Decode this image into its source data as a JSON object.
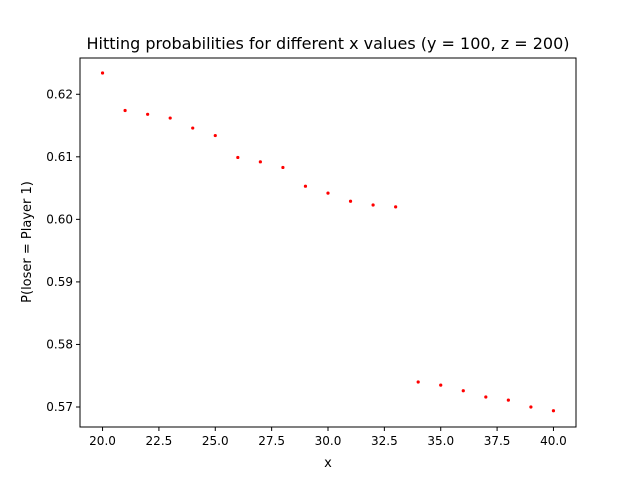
{
  "chart_data": {
    "type": "scatter",
    "title": "Hitting probabilities for different x values (y = 100, z = 200)",
    "xlabel": "x",
    "ylabel": "P(loser = Player 1)",
    "xlim": [
      19.0,
      41.0
    ],
    "ylim": [
      0.5668,
      0.6258
    ],
    "x_ticks": [
      "20.0",
      "22.5",
      "25.0",
      "27.5",
      "30.0",
      "32.5",
      "35.0",
      "37.5",
      "40.0"
    ],
    "y_ticks": [
      "0.57",
      "0.58",
      "0.59",
      "0.60",
      "0.61",
      "0.62"
    ],
    "grid": false,
    "marker_color": "#ff0000",
    "series": [
      {
        "x": [
          20,
          21,
          22,
          23,
          24,
          25,
          26,
          27,
          28,
          29,
          30,
          31,
          32,
          33,
          34,
          35,
          36,
          37,
          38,
          39,
          40
        ],
        "y": [
          0.6234,
          0.6174,
          0.6168,
          0.6162,
          0.6146,
          0.6134,
          0.6099,
          0.6092,
          0.6083,
          0.6053,
          0.6042,
          0.6029,
          0.6023,
          0.602,
          0.574,
          0.5735,
          0.5726,
          0.5716,
          0.5711,
          0.57,
          0.5694
        ]
      }
    ]
  }
}
